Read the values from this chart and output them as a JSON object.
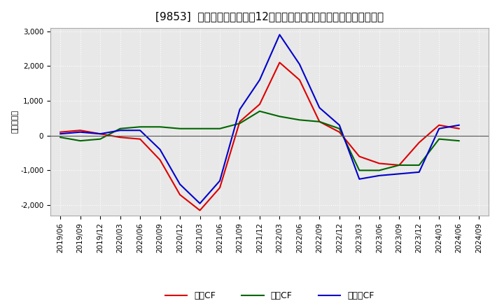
{
  "title": "[9853]  キャッシュフローの12か月移動合計の対前年同期増減額の推移",
  "ylabel": "（百万円）",
  "x_labels": [
    "2019/06",
    "2019/09",
    "2019/12",
    "2020/03",
    "2020/06",
    "2020/09",
    "2020/12",
    "2021/03",
    "2021/06",
    "2021/09",
    "2021/12",
    "2022/03",
    "2022/06",
    "2022/09",
    "2022/12",
    "2023/03",
    "2023/06",
    "2023/09",
    "2023/12",
    "2024/03",
    "2024/06",
    "2024/09"
  ],
  "営業CF": [
    100,
    150,
    50,
    -50,
    -100,
    -700,
    -1700,
    -2150,
    -1500,
    400,
    900,
    2100,
    1600,
    400,
    100,
    -600,
    -800,
    -850,
    -200,
    300,
    200,
    null
  ],
  "投資CF": [
    -50,
    -150,
    -100,
    200,
    250,
    250,
    200,
    200,
    200,
    350,
    700,
    550,
    450,
    400,
    200,
    -1000,
    -1000,
    -850,
    -850,
    -100,
    -150,
    null
  ],
  "フリーCF": [
    50,
    100,
    50,
    150,
    150,
    -400,
    -1400,
    -1950,
    -1300,
    750,
    1600,
    2900,
    2050,
    800,
    300,
    -1250,
    -1150,
    -1100,
    -1050,
    200,
    300,
    null
  ],
  "line_colors": {
    "営業CF": "#dd0000",
    "投資CF": "#006600",
    "フリーCF": "#0000cc"
  },
  "ylim": [
    -2300,
    3100
  ],
  "yticks": [
    -2000,
    -1000,
    0,
    1000,
    2000,
    3000
  ],
  "background_color": "#ffffff",
  "plot_bg_color": "#e8e8e8",
  "grid_color": "#ffffff",
  "title_fontsize": 11,
  "label_fontsize": 8,
  "tick_fontsize": 7.5,
  "legend_fontsize": 9,
  "legend_labels": [
    "営業CF",
    "投資CF",
    "フリーCF"
  ]
}
